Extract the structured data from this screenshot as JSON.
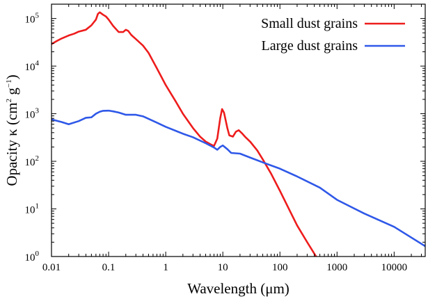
{
  "chart_data": {
    "type": "line",
    "xscale": "log",
    "yscale": "log",
    "xlim": [
      0.01,
      35000
    ],
    "ylim": [
      1,
      200000
    ],
    "xlabel": "Wavelength (μm)",
    "ylabel_main": "Opacity κ (cm",
    "ylabel_exp1": "2",
    "ylabel_mid": " g",
    "ylabel_exp2": "−1",
    "ylabel_end": ")",
    "x_ticks": [
      {
        "value": 0.01,
        "label": "0.01"
      },
      {
        "value": 0.1,
        "label": "0.1"
      },
      {
        "value": 1,
        "label": "1"
      },
      {
        "value": 10,
        "label": "10"
      },
      {
        "value": 100,
        "label": "100"
      },
      {
        "value": 1000,
        "label": "1000"
      },
      {
        "value": 10000,
        "label": "10000"
      }
    ],
    "y_ticks": [
      {
        "value": 1,
        "base": "10",
        "exp": "0"
      },
      {
        "value": 10,
        "base": "10",
        "exp": "1"
      },
      {
        "value": 100,
        "base": "10",
        "exp": "2"
      },
      {
        "value": 1000,
        "base": "10",
        "exp": "3"
      },
      {
        "value": 10000,
        "base": "10",
        "exp": "4"
      },
      {
        "value": 100000,
        "base": "10",
        "exp": "5"
      }
    ],
    "legend_position": "top-right",
    "series": [
      {
        "name": "Small dust grains",
        "color": "#ee1c1c",
        "points": [
          [
            0.01,
            29000
          ],
          [
            0.012,
            33000
          ],
          [
            0.015,
            38000
          ],
          [
            0.02,
            44000
          ],
          [
            0.025,
            48000
          ],
          [
            0.03,
            53000
          ],
          [
            0.04,
            58000
          ],
          [
            0.05,
            72000
          ],
          [
            0.06,
            95000
          ],
          [
            0.065,
            125000
          ],
          [
            0.07,
            135000
          ],
          [
            0.08,
            120000
          ],
          [
            0.09,
            110000
          ],
          [
            0.1,
            95000
          ],
          [
            0.12,
            70000
          ],
          [
            0.15,
            52000
          ],
          [
            0.18,
            52000
          ],
          [
            0.2,
            58000
          ],
          [
            0.22,
            55000
          ],
          [
            0.25,
            45000
          ],
          [
            0.3,
            37000
          ],
          [
            0.4,
            27000
          ],
          [
            0.5,
            19000
          ],
          [
            0.7,
            9000
          ],
          [
            1,
            4000
          ],
          [
            1.5,
            1800
          ],
          [
            2,
            1000
          ],
          [
            3,
            500
          ],
          [
            4,
            330
          ],
          [
            5,
            260
          ],
          [
            6,
            230
          ],
          [
            7,
            210
          ],
          [
            8,
            300
          ],
          [
            9,
            800
          ],
          [
            9.7,
            1250
          ],
          [
            10.5,
            1050
          ],
          [
            12,
            500
          ],
          [
            13,
            350
          ],
          [
            15,
            330
          ],
          [
            17,
            420
          ],
          [
            19,
            450
          ],
          [
            22,
            380
          ],
          [
            25,
            320
          ],
          [
            30,
            260
          ],
          [
            40,
            170
          ],
          [
            50,
            110
          ],
          [
            70,
            55
          ],
          [
            100,
            24
          ],
          [
            150,
            9
          ],
          [
            200,
            4.5
          ],
          [
            300,
            2
          ],
          [
            430,
            1
          ]
        ]
      },
      {
        "name": "Large dust grains",
        "color": "#2f58e8",
        "points": [
          [
            0.01,
            760
          ],
          [
            0.015,
            670
          ],
          [
            0.02,
            600
          ],
          [
            0.03,
            700
          ],
          [
            0.04,
            820
          ],
          [
            0.05,
            840
          ],
          [
            0.06,
            1000
          ],
          [
            0.07,
            1100
          ],
          [
            0.08,
            1150
          ],
          [
            0.1,
            1160
          ],
          [
            0.12,
            1120
          ],
          [
            0.15,
            1060
          ],
          [
            0.2,
            950
          ],
          [
            0.3,
            950
          ],
          [
            0.4,
            880
          ],
          [
            0.5,
            780
          ],
          [
            0.7,
            650
          ],
          [
            1,
            530
          ],
          [
            2,
            380
          ],
          [
            3,
            320
          ],
          [
            5,
            240
          ],
          [
            7,
            195
          ],
          [
            8,
            175
          ],
          [
            9,
            200
          ],
          [
            10,
            215
          ],
          [
            12,
            180
          ],
          [
            14,
            150
          ],
          [
            20,
            145
          ],
          [
            30,
            120
          ],
          [
            50,
            95
          ],
          [
            100,
            70
          ],
          [
            200,
            48
          ],
          [
            500,
            28
          ],
          [
            1000,
            15.5
          ],
          [
            3000,
            8
          ],
          [
            10000,
            4.2
          ],
          [
            35000,
            1.65
          ]
        ]
      }
    ]
  }
}
